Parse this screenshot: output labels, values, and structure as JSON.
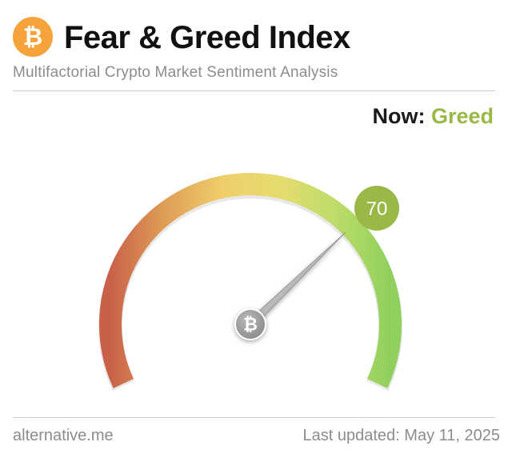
{
  "header": {
    "logo_symbol": "₿",
    "title": "Fear & Greed Index",
    "subtitle": "Multifactorial Crypto Market Sentiment Analysis"
  },
  "status": {
    "now_label": "Now:",
    "now_value": "Greed",
    "now_color": "#9ab846"
  },
  "gauge": {
    "value": 70,
    "value_label": "70",
    "min": 0,
    "max": 100,
    "badge_color": "#9ab846",
    "center_icon": "bitcoin-icon",
    "center_symbol": "₿"
  },
  "footer": {
    "source": "alternative.me",
    "updated": "Last updated: May 11, 2025"
  }
}
